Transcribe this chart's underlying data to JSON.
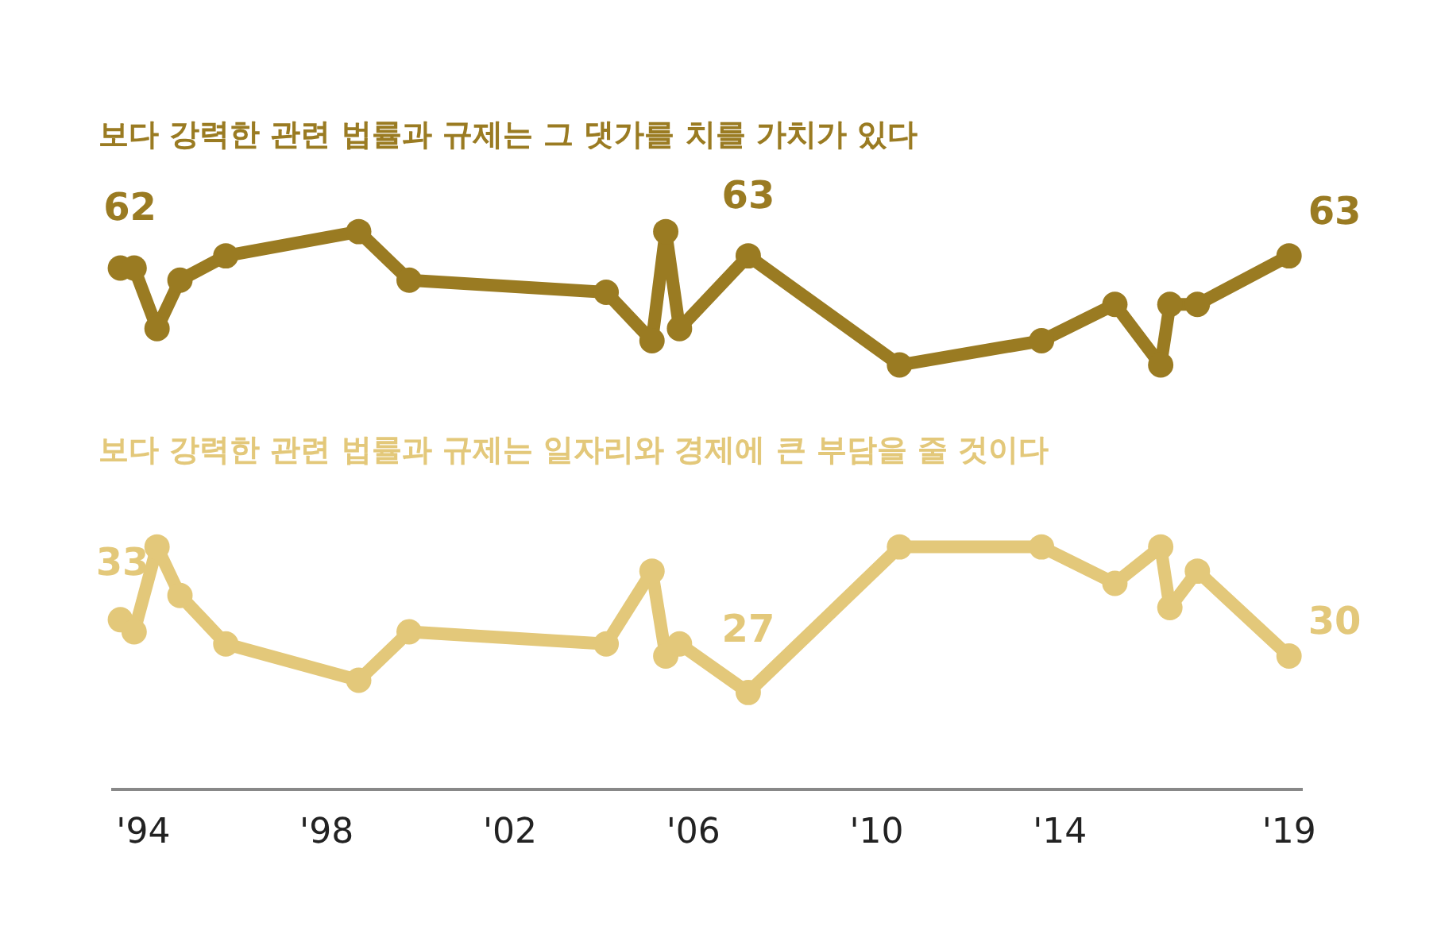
{
  "chart_data": {
    "type": "line",
    "x": [
      1993.5,
      1993.8,
      1994.3,
      1994.8,
      1995.8,
      1998.7,
      1999.8,
      2004.1,
      2005.1,
      2005.4,
      2005.7,
      2007.2,
      2010.5,
      2013.6,
      2015.2,
      2016.2,
      2016.4,
      2017,
      2019
    ],
    "series": [
      {
        "name": "보다 강력한 관련 법률과 규제는 그 댓가를 치를 가치가 있다",
        "color": "#9a7b22",
        "values": [
          62,
          62,
          57,
          61,
          63,
          65,
          61,
          60,
          56,
          65,
          57,
          63,
          54,
          56,
          59,
          54,
          59,
          59,
          63
        ],
        "value_labels": [
          "62",
          null,
          null,
          null,
          null,
          null,
          null,
          null,
          null,
          null,
          null,
          "63",
          null,
          null,
          null,
          null,
          null,
          null,
          "63"
        ]
      },
      {
        "name": "보다 강력한 관련 법률과 규제는 일자리와 경제에 큰 부담을 줄 것이다",
        "color": "#e3c87a",
        "values": [
          33,
          32,
          39,
          35,
          31,
          28,
          32,
          31,
          37,
          30,
          31,
          27,
          39,
          39,
          36,
          39,
          34,
          37,
          30
        ],
        "value_labels": [
          "33",
          null,
          null,
          null,
          null,
          null,
          null,
          null,
          null,
          null,
          null,
          "27",
          null,
          null,
          null,
          null,
          null,
          null,
          "30"
        ]
      }
    ],
    "xlim": [
      1993.3,
      2019.3
    ],
    "xticks": [
      {
        "value": 1994,
        "label": "'94"
      },
      {
        "value": 1998,
        "label": "'98"
      },
      {
        "value": 2002,
        "label": "'02"
      },
      {
        "value": 2006,
        "label": "'06"
      },
      {
        "value": 2010,
        "label": "'10"
      },
      {
        "value": 2014,
        "label": "'14"
      },
      {
        "value": 2019,
        "label": "'19"
      }
    ],
    "tick_labels": "x",
    "grid": false,
    "marker": "circle",
    "line_style": "solid"
  }
}
